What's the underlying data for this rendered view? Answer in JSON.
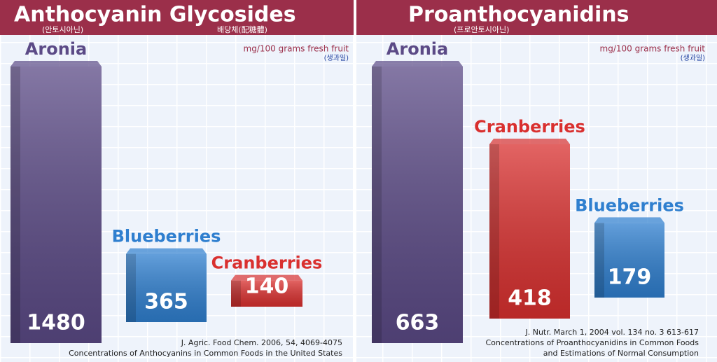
{
  "chart_data": [
    {
      "type": "bar",
      "title": "Anthocyanin Glycosides",
      "subtitle": "(안토시아닌)",
      "title_note": "배당체(配糖體)",
      "unit": "mg/100 grams fresh fruit",
      "unit_note": "(생과일)",
      "categories": [
        "Aronia",
        "Blueberries",
        "Cranberries"
      ],
      "values": [
        1480,
        365,
        140
      ],
      "colors": [
        "#5b4a86",
        "#2f7fcf",
        "#d9302f"
      ],
      "source": "J. Agric. Food Chem. 2006, 54, 4069-4075",
      "caption": [
        "Concentrations of Anthocyanins in Common Foods in the United States"
      ]
    },
    {
      "type": "bar",
      "title": "Proanthocyanidins",
      "subtitle": "(프로안토시아닌)",
      "unit": "mg/100 grams fresh fruit",
      "unit_note": "(생과일)",
      "categories": [
        "Aronia",
        "Cranberries",
        "Blueberries"
      ],
      "values": [
        663,
        418,
        179
      ],
      "colors": [
        "#5b4a86",
        "#d9302f",
        "#2f7fcf"
      ],
      "source": "J. Nutr. March 1, 2004 vol. 134 no. 3 613-617",
      "caption": [
        "Concentrations of Proanthocyanidins in Common Foods",
        "and Estimations of Normal Consumption"
      ]
    }
  ]
}
